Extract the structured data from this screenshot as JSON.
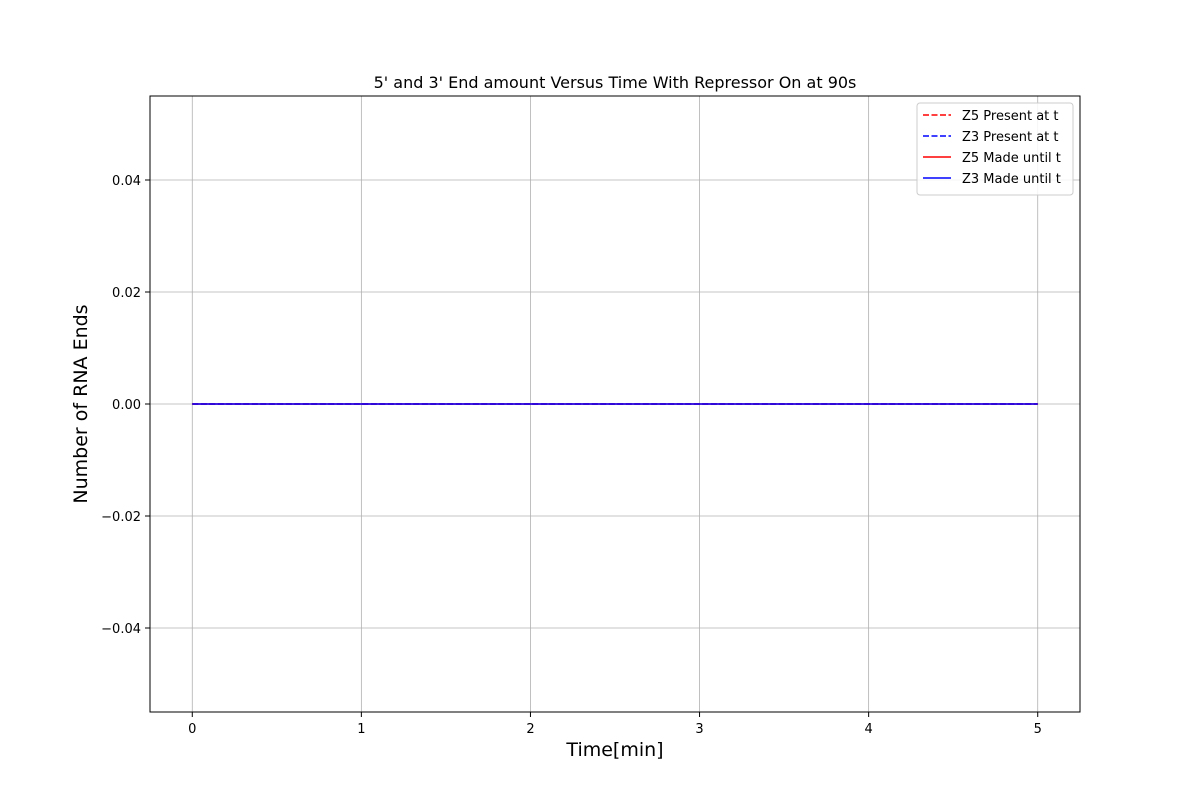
{
  "chart_data": {
    "type": "line",
    "title": "5' and 3' End amount Versus Time With Repressor On at 90s",
    "xlabel": "Time[min]",
    "ylabel": "Number of RNA Ends",
    "xlim": [
      -0.25,
      5.25
    ],
    "ylim": [
      -0.055,
      0.055
    ],
    "xticks": [
      0,
      1,
      2,
      3,
      4,
      5
    ],
    "xtick_labels": [
      "0",
      "1",
      "2",
      "3",
      "4",
      "5"
    ],
    "yticks": [
      -0.04,
      -0.02,
      0.0,
      0.02,
      0.04
    ],
    "ytick_labels": [
      "−0.04",
      "−0.02",
      "0.00",
      "0.02",
      "0.04"
    ],
    "grid": true,
    "legend_position": "top-right",
    "x": [
      0,
      1,
      2,
      3,
      4,
      5
    ],
    "series": [
      {
        "name": "Z5 Present at t",
        "color": "#ff0000",
        "style": "dashed",
        "values": [
          0,
          0,
          0,
          0,
          0,
          0
        ]
      },
      {
        "name": "Z3 Present at t",
        "color": "#0000ff",
        "style": "dashed",
        "values": [
          0,
          0,
          0,
          0,
          0,
          0
        ]
      },
      {
        "name": "Z5 Made until t",
        "color": "#ff0000",
        "style": "solid",
        "values": [
          0,
          0,
          0,
          0,
          0,
          0
        ]
      },
      {
        "name": "Z3 Made until t",
        "color": "#0000ff",
        "style": "solid",
        "values": [
          0,
          0,
          0,
          0,
          0,
          0
        ]
      }
    ]
  }
}
